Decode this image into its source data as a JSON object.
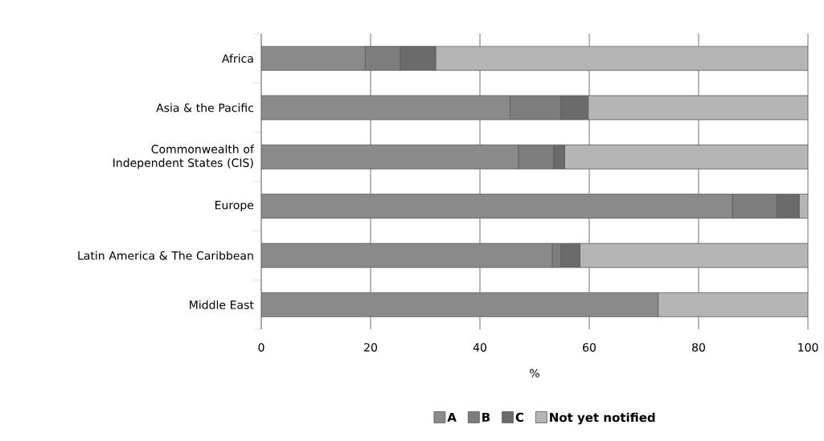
{
  "chart_data": {
    "type": "bar",
    "orientation": "horizontal",
    "stacked": true,
    "xlabel": "%",
    "categories": [
      "Africa",
      "Asia & the Pacific",
      "Commonwealth of Independent States (CIS)",
      "Europe",
      "Latin America & The Caribbean",
      "Middle East"
    ],
    "series": [
      {
        "name": "A",
        "color": "#8a8a8a",
        "values": [
          19.0,
          45.5,
          47.0,
          86.2,
          53.2,
          72.6
        ]
      },
      {
        "name": "B",
        "color": "#7d7d7d",
        "values": [
          6.4,
          9.3,
          6.5,
          8.1,
          1.6,
          0
        ]
      },
      {
        "name": "C",
        "color": "#6b6b6b",
        "values": [
          6.5,
          5.0,
          2.0,
          4.1,
          3.5,
          0
        ]
      },
      {
        "name": "Not yet notified",
        "color": "#b5b5b5",
        "values": [
          68.1,
          40.2,
          44.5,
          1.6,
          41.7,
          27.4
        ]
      }
    ],
    "xlim": [
      0,
      100
    ],
    "xticks": [
      0,
      20,
      40,
      60,
      80,
      100
    ],
    "grid": "x",
    "legend": "bottom"
  }
}
